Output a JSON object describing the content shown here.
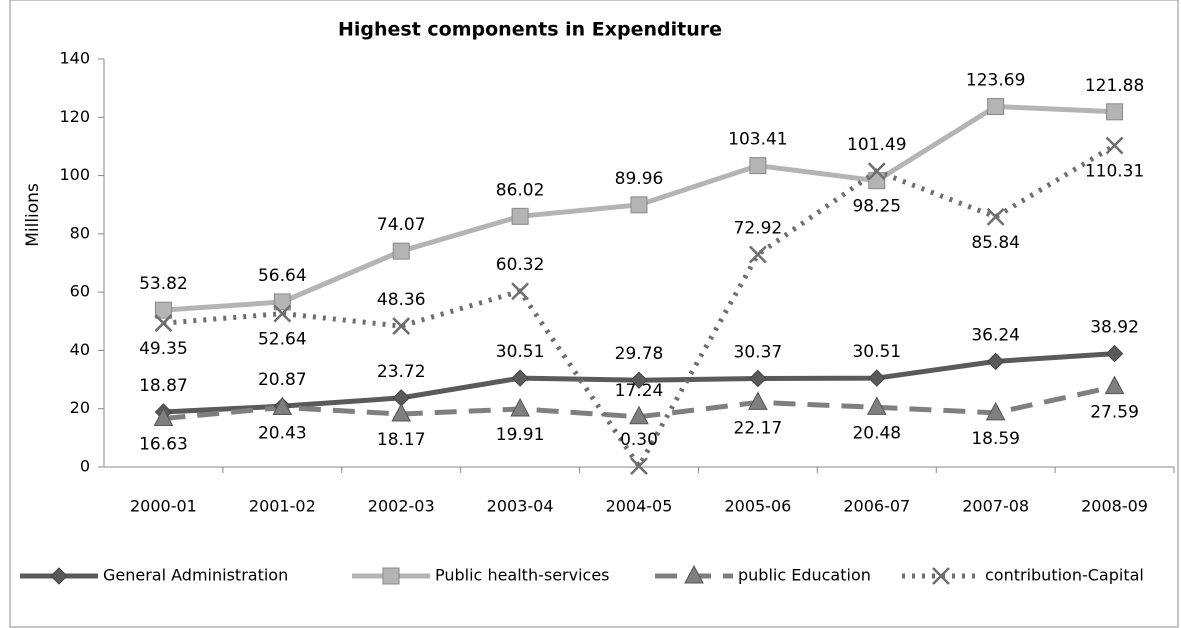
{
  "chart_data": {
    "type": "line",
    "title": "Highest components in Expenditure",
    "ylabel": "Millions",
    "categories": [
      "2000-01",
      "2001-02",
      "2002-03",
      "2003-04",
      "2004-05",
      "2005-06",
      "2006-07",
      "2007-08",
      "2008-09"
    ],
    "ylim": [
      0,
      140
    ],
    "yticks": [
      0,
      20,
      40,
      60,
      80,
      100,
      120,
      140
    ],
    "grid": false,
    "legend": "bottom",
    "series": [
      {
        "name": "General Administration",
        "color": "#5a5a5a",
        "marker": "diamond",
        "dash": "solid",
        "values": [
          18.87,
          20.87,
          23.72,
          30.51,
          29.78,
          30.37,
          30.51,
          36.24,
          38.92
        ]
      },
      {
        "name": "Public health-services",
        "color": "#b4b4b4",
        "marker": "square",
        "dash": "solid",
        "values": [
          53.82,
          56.64,
          74.07,
          86.02,
          89.96,
          103.41,
          98.25,
          123.69,
          121.88
        ]
      },
      {
        "name": "public Education",
        "color": "#7f7f7f",
        "marker": "triangle",
        "dash": "dashed",
        "values": [
          16.63,
          20.43,
          18.17,
          19.91,
          17.24,
          22.17,
          20.48,
          18.59,
          27.59
        ]
      },
      {
        "name": "contribution-Capital",
        "color": "#6e6e6e",
        "marker": "x",
        "dash": "dotted",
        "values": [
          49.35,
          52.64,
          48.36,
          60.32,
          0.3,
          72.92,
          101.49,
          85.84,
          110.31
        ],
        "value_labels": [
          "49.35",
          "52.64",
          "48.36",
          "60.32",
          "0.30",
          "72.92",
          "101.49",
          "85.84",
          "110.31"
        ]
      }
    ]
  }
}
